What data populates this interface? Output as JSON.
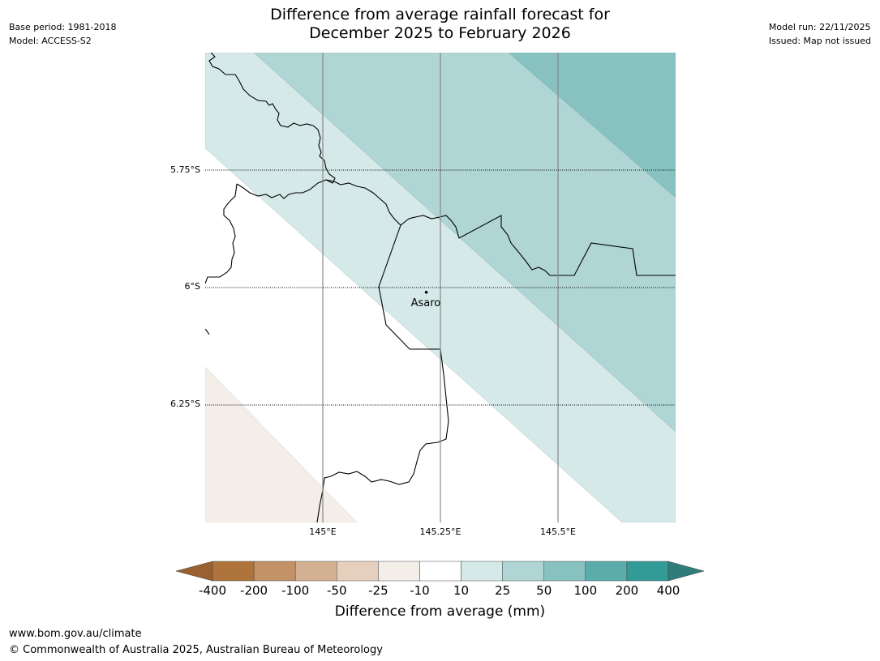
{
  "header": {
    "title_line1": "Difference from average rainfall forecast for",
    "title_line2": "December 2025 to February 2026",
    "base_period": "Base period: 1981-2018",
    "model": "Model: ACCESS-S2",
    "model_run": "Model run: 22/11/2025",
    "issued": "Issued: Map not issued"
  },
  "map": {
    "lat_labels": [
      "5.75°S",
      "6°S",
      "6.25°S"
    ],
    "lon_labels": [
      "145°E",
      "145.25°E",
      "145.5°E"
    ],
    "place": {
      "name": "Asaro",
      "lon": 145.22,
      "lat": -6.01
    },
    "colors": {
      "c_10_25": "#d5e9e8",
      "c_25_50": "#afd5d5",
      "c_50_100": "#87c2c1",
      "c_m25_m10": "#f3eee8",
      "border": "#000000",
      "gridline": "#808080"
    }
  },
  "colorbar": {
    "title": "Difference from average (mm)",
    "ticks": [
      "-400",
      "-200",
      "-100",
      "-50",
      "-25",
      "-10",
      "10",
      "25",
      "50",
      "100",
      "200",
      "400"
    ],
    "under_color": "#9a6030",
    "over_color": "#2e7d7a",
    "bins": [
      "#ae743b",
      "#c39267",
      "#d4b192",
      "#e5d0bd",
      "#f3eee8",
      "#ffffff",
      "#d5e9e8",
      "#afd5d5",
      "#87c2c1",
      "#5aadab",
      "#329a97"
    ]
  },
  "footer": {
    "url": "www.bom.gov.au/climate",
    "copyright": "© Commonwealth of Australia 2025, Australian Bureau of Meteorology"
  }
}
